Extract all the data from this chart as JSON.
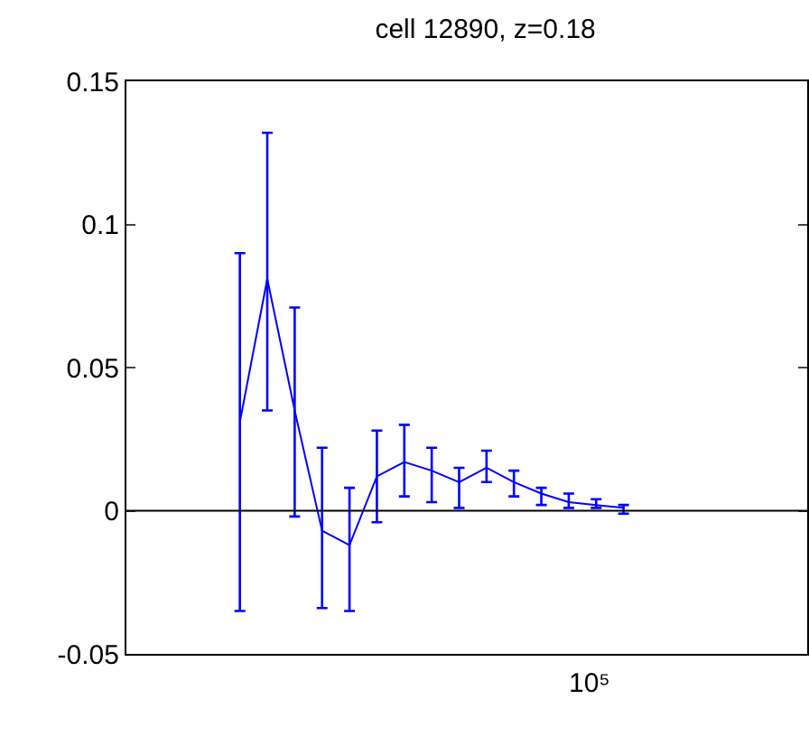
{
  "chart_data": {
    "type": "line",
    "title": "cell 12890, z=0.18",
    "categories": [
      null,
      null,
      null,
      null,
      null,
      null,
      null,
      null,
      null,
      null,
      null,
      null,
      null,
      null,
      null
    ],
    "annotations": [
      "10⁵"
    ],
    "series": [
      {
        "color": "#0000ff",
        "values": [
          0.031,
          0.081,
          0.035,
          -0.007,
          -0.012,
          0.012,
          0.017,
          0.014,
          0.01,
          0.015,
          0.01,
          0.006,
          0.003,
          0.002,
          0.001
        ],
        "errors": [
          [
            -0.035,
            0.09
          ],
          [
            0.035,
            0.132
          ],
          [
            -0.002,
            0.071
          ],
          [
            -0.034,
            0.022
          ],
          [
            -0.035,
            0.008
          ],
          [
            -0.004,
            0.028
          ],
          [
            0.005,
            0.03
          ],
          [
            0.003,
            0.022
          ],
          [
            0.001,
            0.015
          ],
          [
            0.01,
            0.021
          ],
          [
            0.005,
            0.014
          ],
          [
            0.002,
            0.008
          ],
          [
            0.001,
            0.006
          ],
          [
            0.001,
            0.004
          ],
          [
            -0.001,
            0.002
          ]
        ]
      }
    ],
    "ylim": [
      -0.05,
      0.15
    ],
    "yticks": [
      -0.05,
      0,
      0.05,
      0.1,
      0.15
    ],
    "ref_lines": [
      {
        "axis": "y",
        "value": 0,
        "color": "#000000"
      }
    ],
    "marker": "none",
    "line_style": "solid"
  }
}
